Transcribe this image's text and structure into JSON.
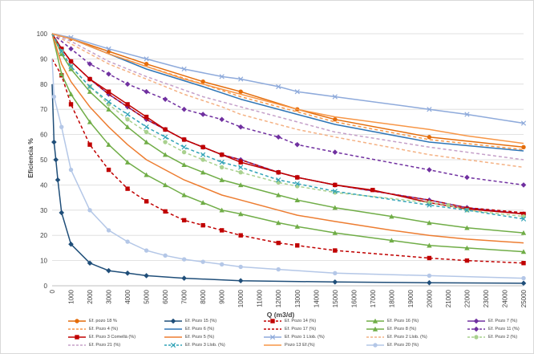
{
  "chart_data": {
    "type": "line",
    "xlabel": "Q (m3/d)",
    "ylabel": "Eficiencia %",
    "xlim": [
      0,
      25000
    ],
    "ylim": [
      0,
      100
    ],
    "x_ticks": [
      "0",
      "1000",
      "2000",
      "3000",
      "4000",
      "5000",
      "6000",
      "7000",
      "8000",
      "9000",
      "10000",
      "11000",
      "12000",
      "13000",
      "14000",
      "15000",
      "16000",
      "17000",
      "18000",
      "19000",
      "20000",
      "21000",
      "22000",
      "23000",
      "24000",
      "25000"
    ],
    "y_ticks": [
      "0",
      "10",
      "20",
      "30",
      "40",
      "50",
      "60",
      "70",
      "80",
      "90",
      "100"
    ],
    "grid": "horizontal",
    "legend_position": "bottom",
    "series": [
      {
        "name": "Ef. pozo 18 %",
        "color": "#e46c0a",
        "dash": "solid",
        "marker": "circle",
        "x": [
          0,
          1000,
          3000,
          5000,
          8000,
          10000,
          13000,
          15000,
          20000,
          25000
        ],
        "y": [
          100,
          98,
          93,
          88,
          81,
          77,
          70,
          66,
          59,
          55
        ]
      },
      {
        "name": "Ef. Pozo 15 (%)",
        "color": "#1f4e79",
        "dash": "solid",
        "marker": "diamond",
        "x": [
          0,
          100,
          200,
          300,
          500,
          1000,
          2000,
          3000,
          4000,
          5000,
          7000,
          10000,
          15000,
          20000,
          25000
        ],
        "y": [
          80,
          57,
          50,
          42,
          29,
          16.5,
          9,
          6,
          5,
          4,
          3,
          2,
          1.5,
          1.2,
          1
        ]
      },
      {
        "name": "Ef. Pozo 14 (%)",
        "color": "#c00000",
        "dash": "dash",
        "marker": "square",
        "x": [
          0,
          500,
          1000,
          2000,
          3000,
          4000,
          5000,
          6000,
          7000,
          8000,
          9000,
          10000,
          12000,
          13000,
          15000,
          20000,
          22000,
          25000
        ],
        "y": [
          90,
          83.5,
          72,
          56,
          46,
          38.5,
          33.5,
          29.5,
          26,
          24,
          22,
          20,
          17,
          16,
          14,
          11,
          10,
          9
        ]
      },
      {
        "name": "Ef. Pozo 16 (%)",
        "color": "#70ad47",
        "dash": "solid",
        "marker": "triangle",
        "x": [
          0,
          500,
          1000,
          2000,
          3000,
          4000,
          5000,
          6000,
          7000,
          8000,
          9000,
          10000,
          12000,
          13000,
          15000,
          18000,
          20000,
          22000,
          25000
        ],
        "y": [
          100,
          92,
          86,
          77,
          70,
          63,
          57,
          52,
          48,
          45,
          42,
          40,
          36,
          34,
          31,
          27.5,
          25,
          23,
          21
        ]
      },
      {
        "name": "Ef. Pozo 7 (%)",
        "color": "#7030a0",
        "dash": "solid",
        "marker": "diamond",
        "x": [
          0,
          500,
          1000,
          2000,
          3000,
          4000,
          5000,
          6000,
          7000,
          8000,
          9000,
          10000,
          12000,
          13000,
          15000,
          20000,
          22000,
          25000
        ],
        "y": [
          100,
          94,
          89,
          82,
          76,
          71,
          66,
          62,
          58,
          55,
          52,
          50,
          45,
          43,
          40,
          34,
          31,
          28.5
        ]
      },
      {
        "name": "Ef. Pozo 4 (%)",
        "color": "#f79646",
        "dash": "dash",
        "marker": "none",
        "x": [
          0,
          1000,
          3000,
          5000,
          8000,
          10000,
          13000,
          15000,
          20000,
          25000
        ],
        "y": [
          100,
          98,
          92,
          87,
          80,
          75,
          69,
          65,
          58,
          54
        ]
      },
      {
        "name": "Ef. Pozo 6 (%)",
        "color": "#2e75b6",
        "dash": "solid",
        "marker": "none",
        "x": [
          0,
          1000,
          3000,
          5000,
          8000,
          10000,
          13000,
          15000,
          20000,
          25000
        ],
        "y": [
          100,
          98,
          92,
          86,
          79,
          74,
          68,
          64,
          57,
          53.5
        ]
      },
      {
        "name": "Ef. Pozo 17 (%)",
        "color": "#c00000",
        "dash": "dash",
        "marker": "none",
        "x": [
          0,
          500,
          1000,
          2000,
          3000,
          4000,
          5000,
          6000,
          7000,
          8000,
          9000,
          10000,
          12000,
          13000,
          15000,
          20000,
          22000,
          25000
        ],
        "y": [
          100,
          94,
          89,
          82,
          76,
          71,
          66,
          62,
          58,
          55,
          52,
          50,
          45,
          43,
          40,
          34,
          31,
          29
        ]
      },
      {
        "name": "Ef. Pozo 8 (%)",
        "color": "#70ad47",
        "dash": "solid",
        "marker": "triangle",
        "x": [
          0,
          500,
          1000,
          2000,
          3000,
          4000,
          5000,
          6000,
          7000,
          8000,
          9000,
          10000,
          12000,
          13000,
          15000,
          18000,
          20000,
          22000,
          25000
        ],
        "y": [
          100,
          84,
          76,
          65,
          56,
          49,
          44,
          40,
          36,
          33,
          30,
          28.5,
          25,
          23.5,
          21,
          18,
          16,
          15,
          13.5
        ]
      },
      {
        "name": "Ef. Pozo 11 (%)",
        "color": "#7030a0",
        "dash": "dash",
        "marker": "diamond",
        "x": [
          0,
          1000,
          2000,
          3000,
          4000,
          5000,
          6000,
          7000,
          8000,
          9000,
          10000,
          12000,
          13000,
          15000,
          20000,
          22000,
          25000
        ],
        "y": [
          100,
          94,
          88,
          84,
          80,
          77,
          74,
          70,
          68,
          66,
          63,
          59,
          56,
          53,
          46,
          43,
          40
        ]
      },
      {
        "name": "Ef. Pozo 3 Comellà (%)",
        "color": "#c00000",
        "dash": "solid",
        "marker": "square",
        "x": [
          0,
          500,
          1000,
          2000,
          3000,
          4000,
          5000,
          6000,
          7000,
          8000,
          9000,
          10000,
          12000,
          13000,
          15000,
          17000,
          20000,
          22000,
          25000
        ],
        "y": [
          100,
          94,
          89,
          82,
          77,
          72,
          67,
          62,
          58,
          55,
          52,
          49,
          45,
          43,
          40,
          38,
          33,
          30.5,
          28.5
        ]
      },
      {
        "name": "Ef. Pozo 5 (%)",
        "color": "#ed7d31",
        "dash": "solid",
        "marker": "none",
        "x": [
          0,
          500,
          1000,
          2000,
          3000,
          4000,
          5000,
          6000,
          7000,
          8000,
          9000,
          10000,
          12000,
          13000,
          15000,
          18000,
          20000,
          22000,
          25000
        ],
        "y": [
          100,
          88,
          81,
          71,
          63,
          56,
          50,
          46,
          42,
          39,
          36,
          34,
          30,
          28,
          25.5,
          22,
          20,
          18.5,
          17
        ]
      },
      {
        "name": "Ef. Pozo 1 Llob. (%)",
        "color": "#8eaadb",
        "dash": "solid",
        "marker": "x",
        "x": [
          0,
          1000,
          3000,
          5000,
          7000,
          9000,
          10000,
          12000,
          13000,
          15000,
          20000,
          22000,
          25000
        ],
        "y": [
          100,
          98.5,
          94,
          90,
          86,
          83,
          82,
          79,
          77,
          75,
          70,
          68,
          64.5
        ]
      },
      {
        "name": "Ef. Pozo 2 Llob. (%)",
        "color": "#f4b183",
        "dash": "dash",
        "marker": "none",
        "x": [
          0,
          1000,
          3000,
          5000,
          7000,
          9000,
          10000,
          13000,
          15000,
          20000,
          25000
        ],
        "y": [
          100,
          96,
          88,
          82,
          76,
          71,
          68,
          62,
          59,
          52,
          47
        ]
      },
      {
        "name": "Ef. Pozo 2 (%)",
        "color": "#a9d18e",
        "dash": "dash",
        "marker": "circle",
        "x": [
          0,
          500,
          1000,
          2000,
          3000,
          4000,
          5000,
          6000,
          7000,
          8000,
          9000,
          10000,
          12000,
          13000,
          15000,
          20000,
          21000,
          22000,
          25000
        ],
        "y": [
          100,
          93,
          87,
          79,
          72,
          66,
          61,
          57,
          53,
          50,
          47,
          45,
          41,
          39.5,
          37,
          33,
          32,
          30,
          27.5
        ]
      },
      {
        "name": "Ef. Pozo 21 (%)",
        "color": "#c5a0c9",
        "dash": "dash",
        "marker": "none",
        "x": [
          0,
          1000,
          3000,
          5000,
          8000,
          10000,
          13000,
          15000,
          20000,
          25000
        ],
        "y": [
          100,
          97,
          89,
          83,
          75,
          71,
          65,
          61,
          55,
          50
        ]
      },
      {
        "name": "Ef. Pozo 3 Llob. (%)",
        "color": "#31a3b7",
        "dash": "dash",
        "marker": "x",
        "x": [
          0,
          500,
          1000,
          2000,
          3000,
          4000,
          5000,
          6000,
          7000,
          8000,
          9000,
          10000,
          12000,
          13000,
          15000,
          20000,
          22000,
          25000
        ],
        "y": [
          100,
          93,
          87,
          79,
          73,
          68,
          63,
          59,
          55,
          52,
          49,
          47,
          42,
          40.5,
          37.5,
          32,
          30,
          26.5
        ]
      },
      {
        "name": "Pozo 13 Ef.(%)",
        "color": "#f79646",
        "dash": "solid",
        "marker": "none",
        "x": [
          0,
          1000,
          3000,
          5000,
          7000,
          9000,
          10000,
          13000,
          15000,
          20000,
          22000,
          25000
        ],
        "y": [
          100,
          98,
          92,
          87,
          82,
          78,
          76,
          70,
          67,
          62,
          59.5,
          56.5
        ]
      },
      {
        "name": "Ef. Pozo 20 (%)",
        "color": "#b4c7e7",
        "dash": "solid",
        "marker": "circle",
        "x": [
          0,
          100,
          500,
          1000,
          2000,
          3000,
          4000,
          5000,
          6000,
          7000,
          8000,
          9000,
          10000,
          12000,
          15000,
          20000,
          25000
        ],
        "y": [
          90,
          75,
          63,
          46,
          30,
          22,
          17.5,
          14,
          12,
          10.5,
          9.5,
          8.5,
          7.5,
          6.5,
          5,
          4,
          3
        ]
      }
    ]
  }
}
